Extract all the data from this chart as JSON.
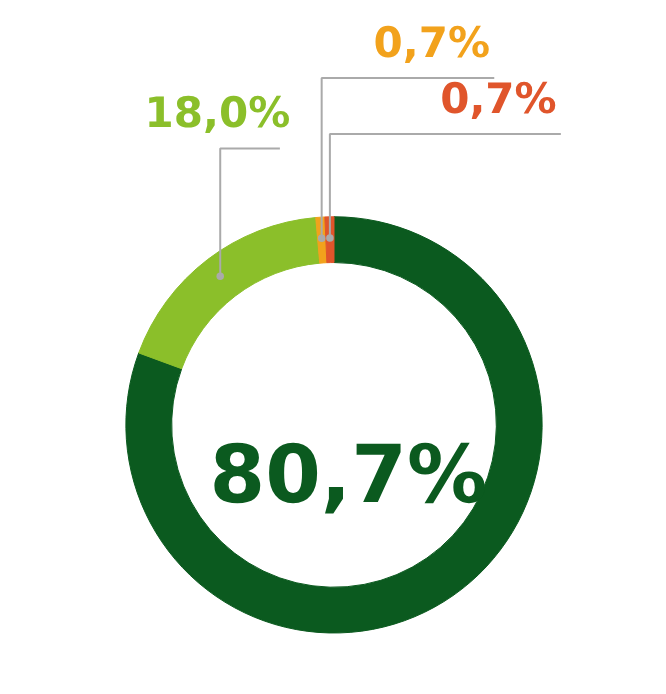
{
  "chart_data": {
    "type": "donut",
    "categories": [
      null,
      null,
      null,
      null
    ],
    "values": [
      80.7,
      18.0,
      0.7,
      0.7
    ],
    "colors": [
      "#0b5a1f",
      "#8bbf2a",
      "#f2a21c",
      "#e0552b"
    ],
    "value_labels": [
      "80,7%",
      "18,0%",
      "0,7%",
      "0,7%"
    ]
  }
}
